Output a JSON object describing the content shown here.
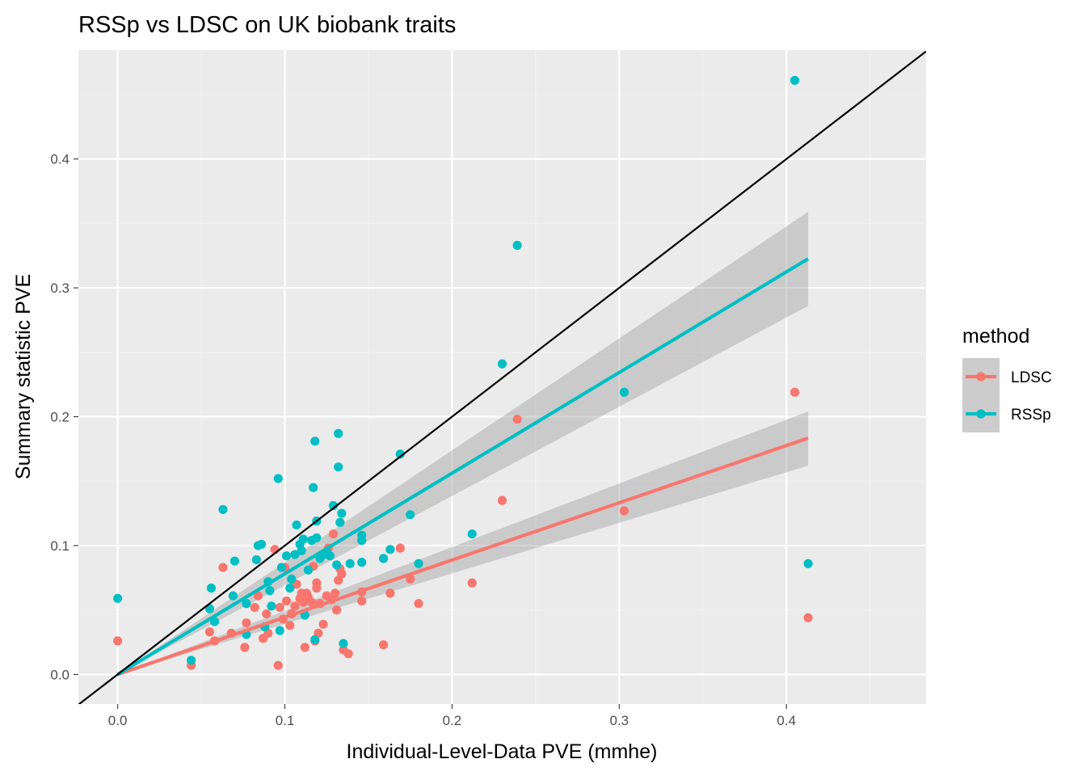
{
  "chart_data": {
    "type": "scatter",
    "title": "RSSp vs LDSC on UK biobank traits",
    "xlabel": "Individual-Level-Data PVE (mmhe)",
    "ylabel": "Summary statistic PVE",
    "xlim": [
      -0.0235,
      0.4835
    ],
    "ylim": [
      -0.023,
      0.4845
    ],
    "x_ticks": [
      0.0,
      0.1,
      0.2,
      0.3,
      0.4
    ],
    "x_tick_labels": [
      "0.0",
      "0.1",
      "0.2",
      "0.3",
      "0.4"
    ],
    "y_ticks": [
      0.0,
      0.1,
      0.2,
      0.3,
      0.4
    ],
    "y_tick_labels": [
      "0.0",
      "0.1",
      "0.2",
      "0.3",
      "0.4"
    ],
    "grid": true,
    "reference_line": {
      "slope": 1,
      "intercept": 0
    },
    "legend": {
      "title": "method",
      "position": "right"
    },
    "series": [
      {
        "name": "LDSC",
        "color": "#F8766D",
        "fit": {
          "x_range": [
            0.0,
            0.413
          ],
          "slope": 0.444,
          "band_lower_end": 0.162,
          "band_upper_end": 0.204
        },
        "points": [
          [
            0.0,
            0.026
          ],
          [
            0.044,
            0.007
          ],
          [
            0.055,
            0.033
          ],
          [
            0.058,
            0.026
          ],
          [
            0.063,
            0.083
          ],
          [
            0.068,
            0.032
          ],
          [
            0.076,
            0.021
          ],
          [
            0.077,
            0.04
          ],
          [
            0.082,
            0.052
          ],
          [
            0.084,
            0.061
          ],
          [
            0.087,
            0.028
          ],
          [
            0.089,
            0.047
          ],
          [
            0.09,
            0.032
          ],
          [
            0.094,
            0.097
          ],
          [
            0.096,
            0.007
          ],
          [
            0.097,
            0.052
          ],
          [
            0.099,
            0.043
          ],
          [
            0.1,
            0.083
          ],
          [
            0.101,
            0.057
          ],
          [
            0.103,
            0.038
          ],
          [
            0.104,
            0.047
          ],
          [
            0.106,
            0.053
          ],
          [
            0.107,
            0.07
          ],
          [
            0.109,
            0.059
          ],
          [
            0.11,
            0.063
          ],
          [
            0.111,
            0.056
          ],
          [
            0.112,
            0.021
          ],
          [
            0.113,
            0.063
          ],
          [
            0.114,
            0.06
          ],
          [
            0.116,
            0.056
          ],
          [
            0.117,
            0.084
          ],
          [
            0.118,
            0.026
          ],
          [
            0.119,
            0.067
          ],
          [
            0.119,
            0.071
          ],
          [
            0.12,
            0.032
          ],
          [
            0.121,
            0.055
          ],
          [
            0.123,
            0.039
          ],
          [
            0.125,
            0.061
          ],
          [
            0.126,
            0.098
          ],
          [
            0.128,
            0.058
          ],
          [
            0.129,
            0.109
          ],
          [
            0.13,
            0.063
          ],
          [
            0.131,
            0.05
          ],
          [
            0.132,
            0.073
          ],
          [
            0.133,
            0.082
          ],
          [
            0.134,
            0.078
          ],
          [
            0.135,
            0.019
          ],
          [
            0.138,
            0.016
          ],
          [
            0.146,
            0.064
          ],
          [
            0.146,
            0.057
          ],
          [
            0.159,
            0.023
          ],
          [
            0.163,
            0.063
          ],
          [
            0.169,
            0.098
          ],
          [
            0.175,
            0.074
          ],
          [
            0.18,
            0.055
          ],
          [
            0.212,
            0.071
          ],
          [
            0.23,
            0.135
          ],
          [
            0.239,
            0.198
          ],
          [
            0.303,
            0.127
          ],
          [
            0.405,
            0.219
          ],
          [
            0.413,
            0.044
          ]
        ]
      },
      {
        "name": "RSSp",
        "color": "#00BFC4",
        "fit": {
          "x_range": [
            0.0,
            0.413
          ],
          "slope": 0.781,
          "band_lower_end": 0.286,
          "band_upper_end": 0.359
        },
        "points": [
          [
            0.0,
            0.059
          ],
          [
            0.044,
            0.011
          ],
          [
            0.055,
            0.051
          ],
          [
            0.056,
            0.067
          ],
          [
            0.058,
            0.041
          ],
          [
            0.063,
            0.128
          ],
          [
            0.069,
            0.061
          ],
          [
            0.07,
            0.088
          ],
          [
            0.077,
            0.055
          ],
          [
            0.077,
            0.031
          ],
          [
            0.083,
            0.089
          ],
          [
            0.084,
            0.1
          ],
          [
            0.086,
            0.101
          ],
          [
            0.088,
            0.037
          ],
          [
            0.09,
            0.072
          ],
          [
            0.091,
            0.065
          ],
          [
            0.092,
            0.053
          ],
          [
            0.096,
            0.152
          ],
          [
            0.097,
            0.034
          ],
          [
            0.098,
            0.083
          ],
          [
            0.101,
            0.092
          ],
          [
            0.103,
            0.067
          ],
          [
            0.104,
            0.074
          ],
          [
            0.106,
            0.093
          ],
          [
            0.107,
            0.116
          ],
          [
            0.109,
            0.101
          ],
          [
            0.11,
            0.096
          ],
          [
            0.111,
            0.105
          ],
          [
            0.112,
            0.046
          ],
          [
            0.114,
            0.081
          ],
          [
            0.116,
            0.104
          ],
          [
            0.117,
            0.145
          ],
          [
            0.118,
            0.027
          ],
          [
            0.118,
            0.181
          ],
          [
            0.119,
            0.106
          ],
          [
            0.119,
            0.119
          ],
          [
            0.121,
            0.09
          ],
          [
            0.123,
            0.093
          ],
          [
            0.125,
            0.095
          ],
          [
            0.127,
            0.092
          ],
          [
            0.129,
            0.131
          ],
          [
            0.131,
            0.085
          ],
          [
            0.132,
            0.161
          ],
          [
            0.132,
            0.187
          ],
          [
            0.133,
            0.118
          ],
          [
            0.134,
            0.125
          ],
          [
            0.135,
            0.024
          ],
          [
            0.139,
            0.086
          ],
          [
            0.146,
            0.108
          ],
          [
            0.146,
            0.104
          ],
          [
            0.146,
            0.087
          ],
          [
            0.159,
            0.09
          ],
          [
            0.163,
            0.097
          ],
          [
            0.169,
            0.171
          ],
          [
            0.175,
            0.124
          ],
          [
            0.18,
            0.086
          ],
          [
            0.212,
            0.109
          ],
          [
            0.23,
            0.241
          ],
          [
            0.239,
            0.333
          ],
          [
            0.303,
            0.219
          ],
          [
            0.405,
            0.461
          ],
          [
            0.413,
            0.086
          ]
        ]
      }
    ]
  }
}
